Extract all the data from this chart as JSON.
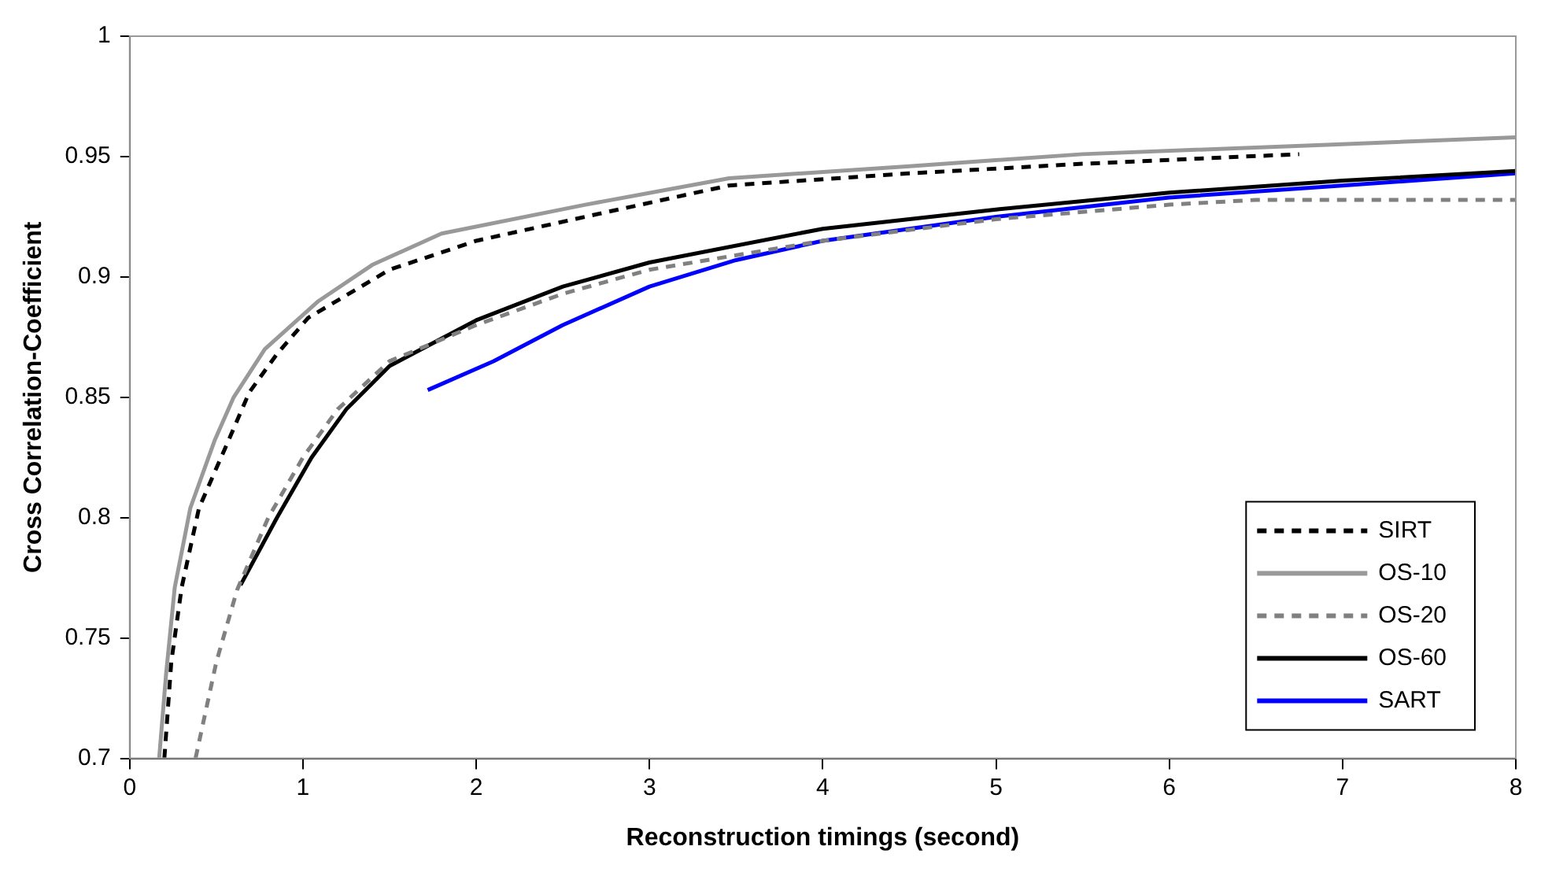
{
  "chart_data": {
    "type": "line",
    "xlabel": "Reconstruction timings (second)",
    "ylabel": "Cross Correlation-Coefficient",
    "xlim": [
      0,
      8
    ],
    "xticks": [
      0,
      1,
      2,
      3,
      4,
      5,
      6,
      7,
      8
    ],
    "ylim": [
      0.7,
      1
    ],
    "yticks": [
      0.7,
      0.75,
      0.8,
      0.85,
      0.9,
      0.95,
      1
    ],
    "grid": false,
    "legend": "bottom right",
    "marker": "none",
    "series": [
      {
        "name": "SIRT",
        "color": "#000000",
        "line_style": "dashed",
        "x": [
          0.2,
          0.24,
          0.3,
          0.4,
          0.57,
          0.69,
          0.85,
          1.03,
          1.5,
          2,
          2.63,
          3.46,
          4.5,
          5.5,
          6.75
        ],
        "values": [
          0.7,
          0.74,
          0.771,
          0.804,
          0.832,
          0.852,
          0.868,
          0.883,
          0.903,
          0.915,
          0.925,
          0.938,
          0.943,
          0.947,
          0.951
        ]
      },
      {
        "name": "OS-10",
        "color": "#999999",
        "line_style": "solid",
        "x": [
          0.17,
          0.21,
          0.26,
          0.35,
          0.49,
          0.6,
          0.78,
          1.09,
          1.4,
          1.8,
          2.63,
          3.46,
          4.5,
          5.5,
          6.94,
          8
        ],
        "values": [
          0.7,
          0.735,
          0.771,
          0.804,
          0.832,
          0.85,
          0.87,
          0.89,
          0.905,
          0.918,
          0.93,
          0.941,
          0.946,
          0.951,
          0.955,
          0.958
        ]
      },
      {
        "name": "OS-20",
        "color": "#808080",
        "line_style": "dashed",
        "x": [
          0.38,
          0.5,
          0.62,
          0.8,
          1,
          1.2,
          1.5,
          2,
          2.5,
          3,
          4,
          5,
          6,
          6.5,
          8
        ],
        "values": [
          0.7,
          0.74,
          0.77,
          0.8,
          0.825,
          0.845,
          0.865,
          0.88,
          0.893,
          0.903,
          0.915,
          0.924,
          0.93,
          0.932,
          0.932
        ]
      },
      {
        "name": "OS-60",
        "color": "#000000",
        "line_style": "solid",
        "x": [
          0.64,
          0.85,
          1.05,
          1.25,
          1.5,
          2,
          2.5,
          3,
          4,
          5,
          6,
          7,
          8
        ],
        "values": [
          0.772,
          0.8,
          0.825,
          0.845,
          0.863,
          0.882,
          0.896,
          0.906,
          0.92,
          0.928,
          0.935,
          0.94,
          0.944
        ]
      },
      {
        "name": "SART",
        "color": "#0000ff",
        "line_style": "solid",
        "x": [
          1.72,
          2.1,
          2.5,
          3,
          3.5,
          4,
          5,
          6,
          7,
          8
        ],
        "values": [
          0.853,
          0.865,
          0.88,
          0.896,
          0.907,
          0.915,
          0.925,
          0.933,
          0.938,
          0.943
        ]
      }
    ]
  }
}
